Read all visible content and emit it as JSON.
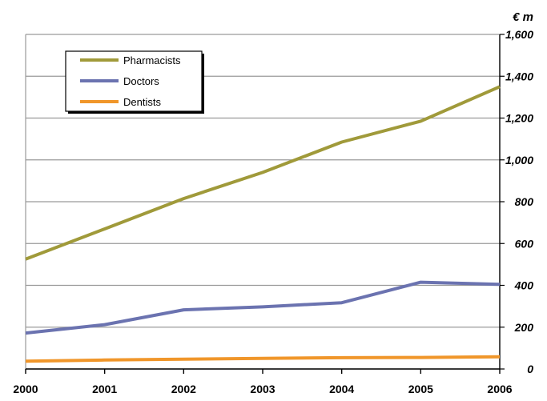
{
  "chart_data": {
    "type": "line",
    "title": "",
    "xlabel": "",
    "ylabel": "€ m",
    "categories": [
      "2000",
      "2001",
      "2002",
      "2003",
      "2004",
      "2005",
      "2006"
    ],
    "ylim": [
      0,
      1600
    ],
    "y_ticks": [
      0,
      200,
      400,
      600,
      800,
      1000,
      1200,
      1400,
      1600
    ],
    "y_tick_labels": [
      "0",
      "200",
      "400",
      "600",
      "800",
      "1,000",
      "1,200",
      "1,400",
      "1,600"
    ],
    "y_axis_position": "right",
    "grid": "horizontal",
    "legend_position": "top-left",
    "series": [
      {
        "name": "Pharmacists",
        "color": "#a09a3a",
        "values": [
          525,
          670,
          815,
          940,
          1085,
          1185,
          1350
        ]
      },
      {
        "name": "Doctors",
        "color": "#6b73b0",
        "values": [
          172,
          212,
          283,
          297,
          317,
          415,
          405
        ]
      },
      {
        "name": "Dentists",
        "color": "#f0962a",
        "values": [
          37,
          43,
          47,
          51,
          54,
          55,
          58
        ]
      }
    ]
  }
}
